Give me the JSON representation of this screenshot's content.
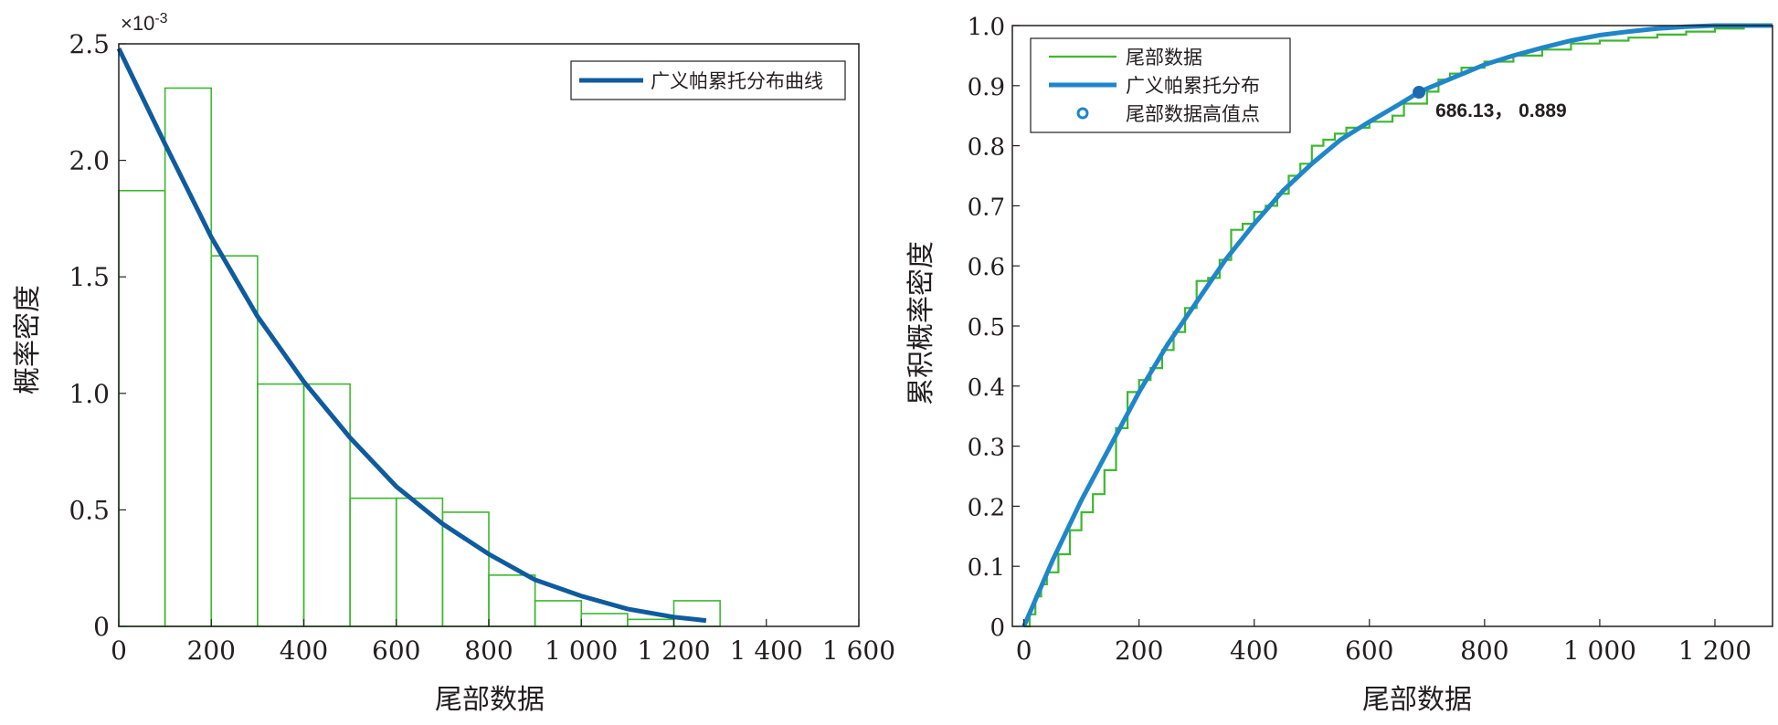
{
  "colors": {
    "hist": "#3cb82e",
    "pdf_curve": "#0f5b9e",
    "ecdf": "#3cb82e",
    "cdf_curve": "#1f86c9",
    "annotation": "#1c6bb0",
    "axis": "#231f20"
  },
  "chart_data": [
    {
      "type": "histogram",
      "panel": "left",
      "xlabel": "尾部数据",
      "ylabel": "概率密度",
      "exponent_label": "×10",
      "exponent_power": "-3",
      "xlim": [
        0,
        1600
      ],
      "ylim": [
        0,
        2.5
      ],
      "x_ticks": [
        0,
        200,
        400,
        600,
        800,
        1000,
        1200,
        1400,
        1600
      ],
      "x_tick_labels": [
        "0",
        "200",
        "400",
        "600",
        "800",
        "1 000",
        "1 200",
        "1 400",
        "1 600"
      ],
      "y_ticks": [
        0,
        0.5,
        1.0,
        1.5,
        2.0,
        2.5
      ],
      "y_tick_labels": [
        "0",
        "0.5",
        "1.0",
        "1.5",
        "2.0",
        "2.5"
      ],
      "bin_width": 100,
      "bins": [
        {
          "x0": 0,
          "value": 1.87
        },
        {
          "x0": 100,
          "value": 2.31
        },
        {
          "x0": 200,
          "value": 1.59
        },
        {
          "x0": 300,
          "value": 1.04
        },
        {
          "x0": 400,
          "value": 1.04
        },
        {
          "x0": 500,
          "value": 0.55
        },
        {
          "x0": 600,
          "value": 0.55
        },
        {
          "x0": 700,
          "value": 0.49
        },
        {
          "x0": 800,
          "value": 0.22
        },
        {
          "x0": 900,
          "value": 0.11
        },
        {
          "x0": 1000,
          "value": 0.055
        },
        {
          "x0": 1100,
          "value": 0.03
        },
        {
          "x0": 1200,
          "value": 0.11
        }
      ],
      "pdf_curve": {
        "name": "广义帕累托分布曲线",
        "x": [
          0,
          100,
          200,
          300,
          400,
          500,
          600,
          700,
          800,
          900,
          1000,
          1100,
          1200,
          1270
        ],
        "y": [
          2.48,
          2.07,
          1.67,
          1.33,
          1.05,
          0.81,
          0.6,
          0.44,
          0.31,
          0.2,
          0.13,
          0.075,
          0.04,
          0.025
        ]
      },
      "legend": {
        "position": "top-right",
        "entries": [
          "广义帕累托分布曲线"
        ]
      }
    },
    {
      "type": "line",
      "panel": "right",
      "xlabel": "尾部数据",
      "ylabel": "累积概率密度",
      "xlim": [
        -20,
        1300
      ],
      "ylim": [
        0,
        1.0
      ],
      "x_ticks": [
        0,
        200,
        400,
        600,
        800,
        1000,
        1200
      ],
      "x_tick_labels": [
        "0",
        "200",
        "400",
        "600",
        "800",
        "1 000",
        "1 200"
      ],
      "y_ticks": [
        0,
        0.1,
        0.2,
        0.3,
        0.4,
        0.5,
        0.6,
        0.7,
        0.8,
        0.9,
        1.0
      ],
      "y_tick_labels": [
        "0",
        "0.1",
        "0.2",
        "0.3",
        "0.4",
        "0.5",
        "0.6",
        "0.7",
        "0.8",
        "0.9",
        "1.0"
      ],
      "series": [
        {
          "name": "尾部数据",
          "style": "step",
          "x": [
            0,
            10,
            20,
            30,
            40,
            60,
            80,
            100,
            120,
            140,
            160,
            180,
            200,
            220,
            240,
            260,
            280,
            300,
            320,
            340,
            360,
            380,
            400,
            420,
            440,
            460,
            480,
            500,
            520,
            540,
            560,
            580,
            600,
            620,
            640,
            660,
            680,
            700,
            720,
            740,
            760,
            780,
            800,
            850,
            900,
            950,
            1000,
            1050,
            1100,
            1150,
            1200,
            1250,
            1300
          ],
          "y": [
            0.0,
            0.02,
            0.05,
            0.07,
            0.09,
            0.12,
            0.16,
            0.19,
            0.22,
            0.26,
            0.33,
            0.39,
            0.41,
            0.43,
            0.46,
            0.49,
            0.53,
            0.575,
            0.58,
            0.61,
            0.66,
            0.67,
            0.69,
            0.7,
            0.72,
            0.75,
            0.77,
            0.8,
            0.81,
            0.82,
            0.83,
            0.83,
            0.84,
            0.84,
            0.85,
            0.87,
            0.87,
            0.89,
            0.91,
            0.92,
            0.93,
            0.93,
            0.94,
            0.95,
            0.96,
            0.97,
            0.975,
            0.98,
            0.985,
            0.99,
            0.995,
            1.0,
            1.0
          ]
        },
        {
          "name": "广义帕累托分布",
          "style": "line",
          "x": [
            0,
            50,
            100,
            150,
            200,
            250,
            300,
            350,
            400,
            450,
            500,
            550,
            600,
            650,
            686.13,
            700,
            750,
            800,
            850,
            900,
            950,
            1000,
            1050,
            1100,
            1150,
            1200,
            1250,
            1300
          ],
          "y": [
            0.0,
            0.11,
            0.21,
            0.3,
            0.39,
            0.47,
            0.54,
            0.61,
            0.67,
            0.725,
            0.77,
            0.81,
            0.84,
            0.868,
            0.889,
            0.895,
            0.915,
            0.935,
            0.95,
            0.963,
            0.975,
            0.984,
            0.99,
            0.995,
            0.998,
            1.0,
            1.0,
            1.0
          ]
        }
      ],
      "highlight_point": {
        "name": "尾部数据高值点",
        "x": 686.13,
        "y": 0.889,
        "label": "686.13， 0.889"
      },
      "legend": {
        "position": "top-left",
        "entries": [
          "尾部数据",
          "广义帕累托分布",
          "尾部数据高值点"
        ]
      }
    }
  ]
}
